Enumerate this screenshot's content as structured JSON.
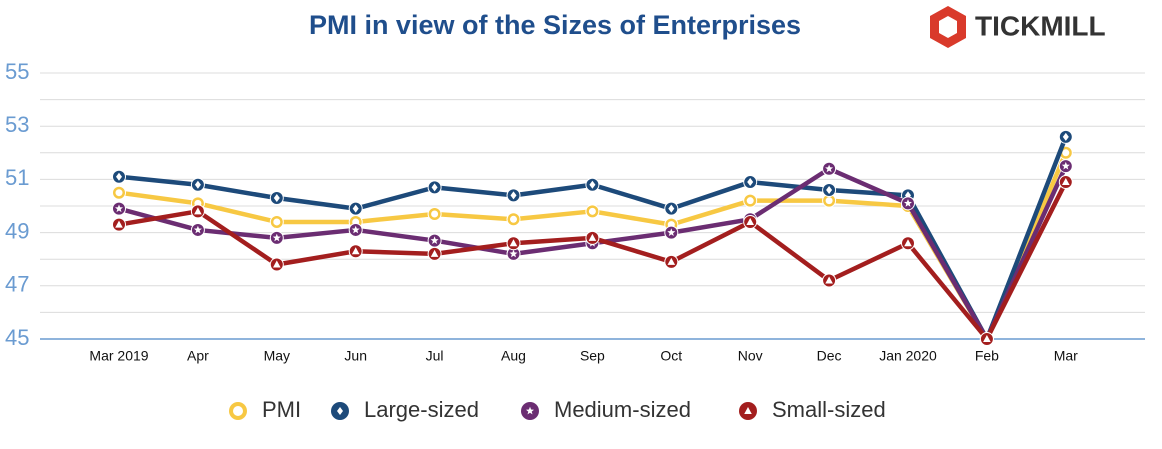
{
  "chart_data": {
    "type": "line",
    "title": "PMI in view of the Sizes of Enterprises",
    "logo": "TICKMILL",
    "categories": [
      "Mar 2019",
      "Apr",
      "May",
      "Jun",
      "Jul",
      "Aug",
      "Sep",
      "Oct",
      "Nov",
      "Dec",
      "Jan 2020",
      "Feb",
      "Mar"
    ],
    "series": [
      {
        "name": "PMI",
        "color": "#f7c843",
        "values": [
          50.5,
          50.1,
          49.4,
          49.4,
          49.7,
          49.5,
          49.8,
          49.3,
          50.2,
          50.2,
          50.0,
          45.0,
          52.0
        ]
      },
      {
        "name": "Large-sized",
        "color": "#1d4a7a",
        "values": [
          51.1,
          50.8,
          50.3,
          49.9,
          50.7,
          50.4,
          50.8,
          49.9,
          50.9,
          50.6,
          50.4,
          45.0,
          52.6
        ]
      },
      {
        "name": "Medium-sized",
        "color": "#6b2d72",
        "values": [
          49.9,
          49.1,
          48.8,
          49.1,
          48.7,
          48.2,
          48.6,
          49.0,
          49.5,
          51.4,
          50.1,
          45.0,
          51.5
        ]
      },
      {
        "name": "Small-sized",
        "color": "#a31e1e",
        "values": [
          49.3,
          49.8,
          47.8,
          48.3,
          48.2,
          48.6,
          48.8,
          47.9,
          49.4,
          47.2,
          48.6,
          45.0,
          50.9
        ]
      }
    ],
    "ylim": [
      45,
      55
    ],
    "yticks": [
      45,
      47,
      49,
      51,
      53,
      55
    ],
    "minor_yticks": [
      46,
      48,
      50,
      52,
      54
    ],
    "grid": true,
    "legend": "bottom"
  }
}
